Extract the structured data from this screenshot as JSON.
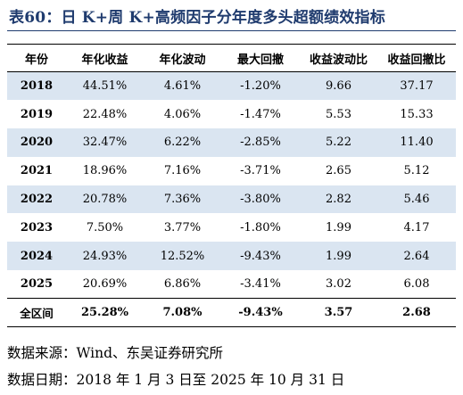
{
  "title": "表60：日 K+周 K+高频因子分年度多头超额绩效指标",
  "table": {
    "headers": [
      "年份",
      "年化收益",
      "年化波动",
      "最大回撤",
      "收益波动比",
      "收益回撤比"
    ],
    "rows": [
      [
        "2018",
        "44.51%",
        "4.61%",
        "-1.20%",
        "9.66",
        "37.17"
      ],
      [
        "2019",
        "22.48%",
        "4.06%",
        "-1.47%",
        "5.53",
        "15.33"
      ],
      [
        "2020",
        "32.47%",
        "6.22%",
        "-2.85%",
        "5.22",
        "11.40"
      ],
      [
        "2021",
        "18.96%",
        "7.16%",
        "-3.71%",
        "2.65",
        "5.12"
      ],
      [
        "2022",
        "20.78%",
        "7.36%",
        "-3.80%",
        "2.82",
        "5.46"
      ],
      [
        "2023",
        "7.50%",
        "3.77%",
        "-1.80%",
        "1.99",
        "4.17"
      ],
      [
        "2024",
        "24.93%",
        "12.52%",
        "-9.43%",
        "1.99",
        "2.64"
      ],
      [
        "2025",
        "20.69%",
        "6.86%",
        "-3.41%",
        "3.02",
        "6.08"
      ]
    ],
    "total": [
      "全区间",
      "25.28%",
      "7.08%",
      "-9.43%",
      "3.57",
      "2.68"
    ]
  },
  "source": "数据来源：Wind、东吴证券研究所",
  "date_range": "数据日期：2018 年 1 月 3 日至 2025 年 10 月 31 日",
  "colors": {
    "title": "#1f3b6e",
    "shade": "#dae5f1"
  }
}
